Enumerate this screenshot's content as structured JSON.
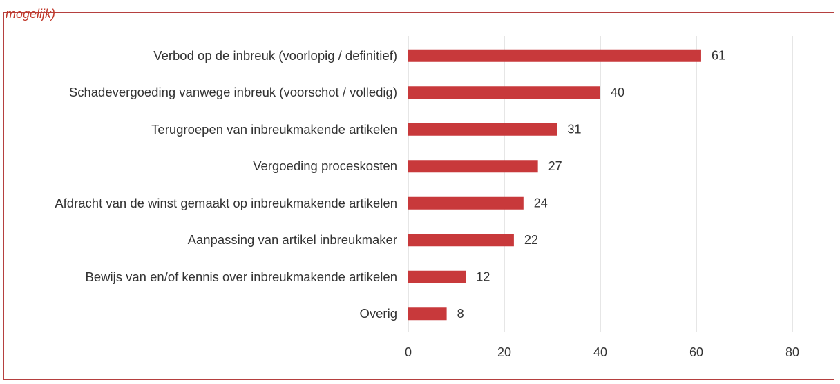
{
  "chart_data": {
    "type": "bar",
    "orientation": "horizontal",
    "title": "mogelijk)",
    "categories": [
      "Verbod op de inbreuk (voorlopig / definitief)",
      "Schadevergoeding vanwege inbreuk (voorschot / volledig)",
      "Terugroepen van inbreukmakende artikelen",
      "Vergoeding proceskosten",
      "Afdracht van de winst gemaakt op inbreukmakende artikelen",
      "Aanpassing van artikel inbreukmaker",
      "Bewijs van en/of kennis over inbreukmakende artikelen",
      "Overig"
    ],
    "values": [
      61,
      40,
      31,
      27,
      24,
      22,
      12,
      8
    ],
    "color": "#c8393b",
    "xlim": [
      0,
      80
    ],
    "xticks": [
      0,
      20,
      40,
      60,
      80
    ],
    "grid": true
  }
}
